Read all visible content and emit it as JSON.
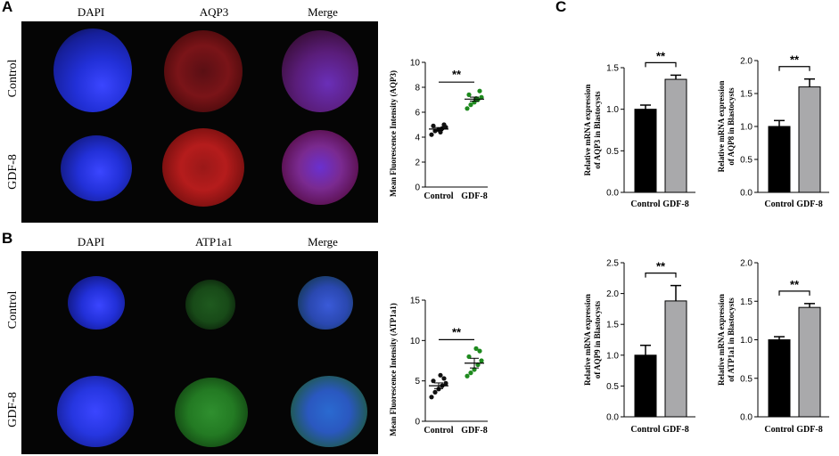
{
  "panels": {
    "A": {
      "letter": "A",
      "cols": [
        "DAPI",
        "AQP3",
        "Merge"
      ],
      "rows": [
        "Control",
        "GDF-8"
      ]
    },
    "B": {
      "letter": "B",
      "cols": [
        "DAPI",
        "ATP1a1",
        "Merge"
      ],
      "rows": [
        "Control",
        "GDF-8"
      ]
    },
    "C": {
      "letter": "C"
    }
  },
  "colors": {
    "black_bar": "#000000",
    "gray_bar": "#a9a9ab",
    "green_dot": "#1e8a1e",
    "dapi": "#2b3cff",
    "aqp3": "#b01818",
    "atp": "#2f8f2f"
  },
  "chart_data": [
    {
      "id": "scatterA",
      "type": "scatter",
      "ylabel": "Mean Fluorescence Intensity (AQP3)",
      "categories": [
        "Control",
        "GDF-8"
      ],
      "ylim": [
        0,
        10
      ],
      "yticks": [
        "0",
        "2",
        "4",
        "6",
        "8",
        "10"
      ],
      "series": [
        {
          "values": [
            4.2,
            4.5,
            4.6,
            4.7,
            4.8,
            4.9,
            5.0,
            4.4
          ],
          "mean": 4.65,
          "sem": 0.12
        },
        {
          "values": [
            6.3,
            6.6,
            6.8,
            7.0,
            7.2,
            7.4,
            7.7,
            7.1
          ],
          "mean": 7.05,
          "sem": 0.16
        }
      ],
      "significance": "**"
    },
    {
      "id": "scatterB",
      "type": "scatter",
      "ylabel": "Mean Fluorescence Intensity (ATP1a1)",
      "categories": [
        "Control",
        "GDF-8"
      ],
      "ylim": [
        0,
        15
      ],
      "yticks": [
        "0",
        "5",
        "10",
        "15"
      ],
      "series": [
        {
          "values": [
            3.0,
            3.6,
            4.0,
            4.4,
            4.7,
            5.0,
            5.3,
            5.7
          ],
          "mean": 4.4,
          "sem": 0.35
        },
        {
          "values": [
            5.6,
            6.0,
            6.4,
            7.0,
            7.5,
            8.0,
            8.7,
            9.0
          ],
          "mean": 7.2,
          "sem": 0.6
        }
      ],
      "significance": "**"
    },
    {
      "id": "barAQP3",
      "type": "bar",
      "ylabel": [
        "Relative mRNA expression",
        "of AQP3 in Blastocysts"
      ],
      "categories": [
        "Control",
        "GDF-8"
      ],
      "values": [
        1.0,
        1.36
      ],
      "errors": [
        0.05,
        0.05
      ],
      "ylim": [
        0,
        1.5
      ],
      "yticks": [
        "0.0",
        "0.5",
        "1.0",
        "1.5"
      ],
      "significance": "**"
    },
    {
      "id": "barAQP8",
      "type": "bar",
      "ylabel": [
        "Relative mRNA expression",
        "of AQP8 in Blastocysts"
      ],
      "categories": [
        "Control",
        "GDF-8"
      ],
      "values": [
        1.0,
        1.6
      ],
      "errors": [
        0.09,
        0.12
      ],
      "ylim": [
        0,
        2.0
      ],
      "yticks": [
        "0.0",
        "0.5",
        "1.0",
        "1.5",
        "2.0"
      ],
      "significance": "**"
    },
    {
      "id": "barAQP9",
      "type": "bar",
      "ylabel": [
        "Relative mRNA expression",
        "of AQP9 in Blastocysts"
      ],
      "categories": [
        "Control",
        "GDF-8"
      ],
      "values": [
        1.0,
        1.88
      ],
      "errors": [
        0.16,
        0.25
      ],
      "ylim": [
        0,
        2.5
      ],
      "yticks": [
        "0.0",
        "0.5",
        "1.0",
        "1.5",
        "2.0",
        "2.5"
      ],
      "significance": "**"
    },
    {
      "id": "barATP1a1",
      "type": "bar",
      "ylabel": [
        "Relative mRNA expression",
        "of ATP1a1 in Blastocysts"
      ],
      "categories": [
        "Control",
        "GDF-8"
      ],
      "values": [
        1.0,
        1.42
      ],
      "errors": [
        0.04,
        0.05
      ],
      "ylim": [
        0,
        2.0
      ],
      "yticks": [
        "0.0",
        "0.5",
        "1.0",
        "1.5",
        "2.0"
      ],
      "significance": "**"
    }
  ]
}
